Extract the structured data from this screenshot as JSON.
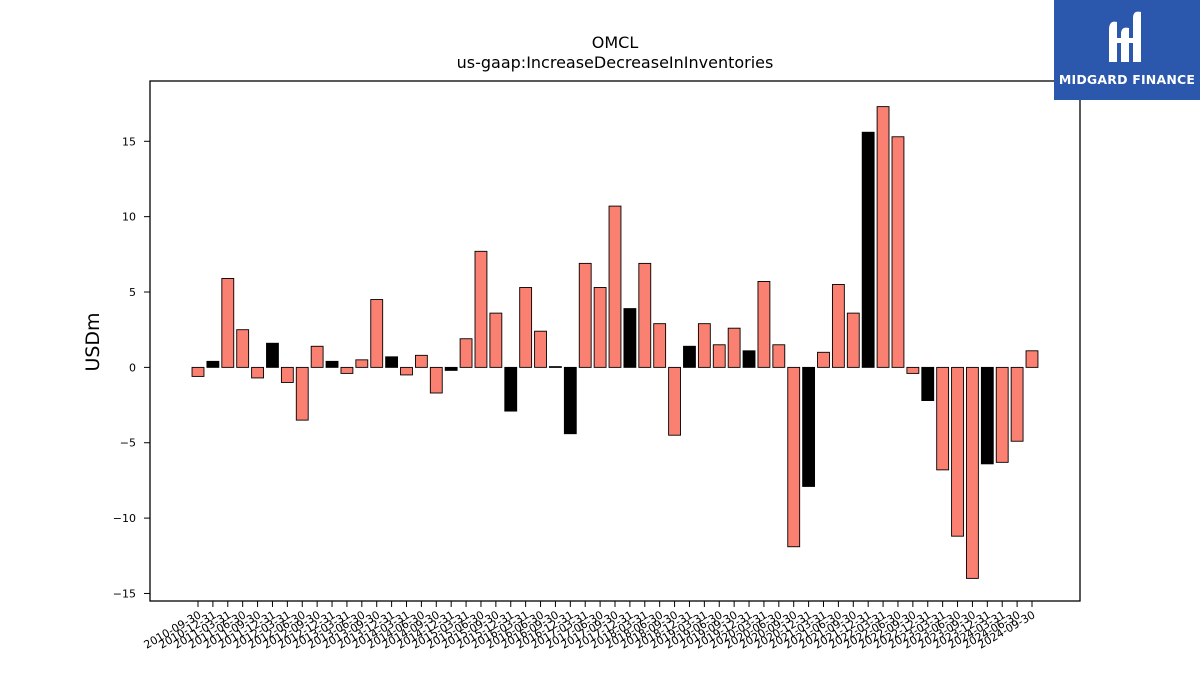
{
  "brand": {
    "name": "MIDGARD FINANCE",
    "background_color": "#2b57ad",
    "text_color": "#ffffff"
  },
  "colors": {
    "bar_default": "#fa8072",
    "bar_highlight": "#000000",
    "bar_edge": "#000000"
  },
  "chart_data": {
    "type": "bar",
    "title": "OMCL",
    "subtitle": "us-gaap:IncreaseDecreaseInInventories",
    "xlabel": "",
    "ylabel": "USDm",
    "ylim": [
      -15.5,
      19.0
    ],
    "yticks": [
      -15,
      -10,
      -5,
      0,
      5,
      10,
      15
    ],
    "grid": false,
    "categories": [
      "2010-09-30",
      "2010-12-31",
      "2011-03-31",
      "2011-06-30",
      "2011-09-30",
      "2011-12-31",
      "2012-03-31",
      "2012-06-30",
      "2012-09-30",
      "2012-12-31",
      "2013-03-31",
      "2013-06-30",
      "2013-09-30",
      "2013-12-31",
      "2014-03-31",
      "2014-06-30",
      "2014-09-30",
      "2014-12-31",
      "2015-03-31",
      "2015-06-30",
      "2015-09-30",
      "2015-12-31",
      "2016-03-31",
      "2016-06-30",
      "2016-09-30",
      "2016-12-31",
      "2017-03-31",
      "2017-06-30",
      "2017-09-30",
      "2017-12-31",
      "2018-03-31",
      "2018-06-30",
      "2018-09-30",
      "2018-12-31",
      "2019-03-31",
      "2019-06-30",
      "2019-09-30",
      "2019-12-31",
      "2020-03-31",
      "2020-06-30",
      "2020-09-30",
      "2020-12-31",
      "2021-03-31",
      "2021-06-30",
      "2021-09-30",
      "2021-12-31",
      "2022-03-31",
      "2022-06-30",
      "2022-09-30",
      "2022-12-31",
      "2023-03-31",
      "2023-06-30",
      "2023-09-30",
      "2023-12-31",
      "2024-03-31",
      "2024-06-30",
      "2024-09-30"
    ],
    "tick_labels": [
      "2010-09-30",
      "2010-12-31",
      "2011-03-31",
      "2011-06-30",
      "2011-09-30",
      "2011-12-31",
      "2012-03-31",
      "2012-06-30",
      "2012-09-30",
      "2012-12-31",
      "2013-03-31",
      "2013-06-30",
      "2013-09-30",
      "2013-12-31",
      "2014-03-31",
      "2014-06-30",
      "2014-09-30",
      "2014-12-31",
      "2015-03-31",
      "2015-06-30",
      "2015-09-30",
      "2015-12-31",
      "2016-03-31",
      "2016-06-30",
      "2016-09-30",
      "2016-12-31",
      "2017-03-31",
      "2017-06-30",
      "2017-09-30",
      "2017-12-31",
      "2018-03-31",
      "2018-06-30",
      "2018-09-30",
      "2018-12-31",
      "2019-03-31",
      "2019-06-30",
      "2019-09-30",
      "2019-12-31",
      "2020-03-31",
      "2020-06-30",
      "2020-09-30",
      "2020-12-31",
      "2021-03-31",
      "2021-06-30",
      "2021-09-30",
      "2021-12-31",
      "2022-03-31",
      "2022-06-30",
      "2022-09-30",
      "2022-12-31",
      "2023-03-31",
      "2023-06-30",
      "2023-09-30",
      "2023-12-31",
      "2024-03-31",
      "2024-06-30",
      "2024-09-30"
    ],
    "values": [
      -0.6,
      0.4,
      5.9,
      2.5,
      -0.7,
      1.6,
      -1.0,
      -3.5,
      1.4,
      0.4,
      -0.4,
      0.5,
      4.5,
      0.7,
      -0.5,
      0.8,
      -1.7,
      -0.2,
      1.9,
      7.7,
      3.6,
      -2.9,
      5.3,
      2.4,
      0.05,
      -4.4,
      6.9,
      5.3,
      10.7,
      3.9,
      6.9,
      2.9,
      -4.5,
      1.4,
      2.9,
      1.5,
      2.6,
      1.1,
      5.7,
      1.5,
      -11.9,
      -7.9,
      1.0,
      5.5,
      3.6,
      15.6,
      17.3,
      15.3,
      -0.4,
      -2.2,
      -6.8,
      -11.2,
      -14.0,
      -6.4,
      -6.3,
      -4.9,
      1.1
    ],
    "highlight": [
      false,
      true,
      false,
      false,
      false,
      true,
      false,
      false,
      false,
      true,
      false,
      false,
      false,
      true,
      false,
      false,
      false,
      true,
      false,
      false,
      false,
      true,
      false,
      false,
      false,
      true,
      false,
      false,
      false,
      true,
      false,
      false,
      false,
      true,
      false,
      false,
      false,
      true,
      false,
      false,
      false,
      true,
      false,
      false,
      false,
      true,
      false,
      false,
      false,
      true,
      false,
      false,
      false,
      true,
      false,
      false,
      false
    ]
  }
}
